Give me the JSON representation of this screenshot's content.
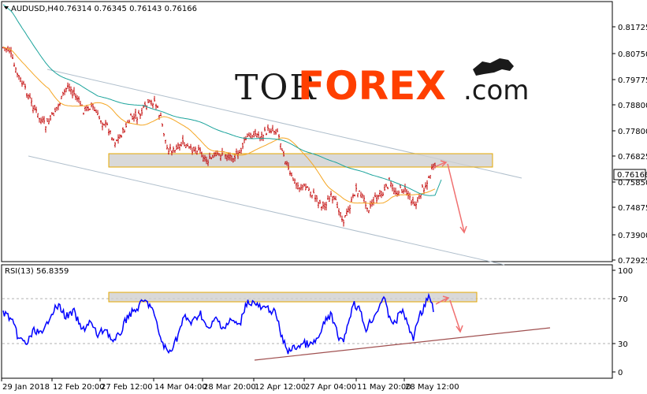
{
  "main_chart": {
    "header_symbol": "AUDUSD,H4",
    "header_ohlc": "0.76314 0.76345 0.76143 0.76166",
    "price_labels": [
      "0.81725",
      "0.80750",
      "0.79775",
      "0.78800",
      "0.77800",
      "0.76825",
      "0.75850",
      "0.74875",
      "0.73900",
      "0.72925"
    ],
    "current_price": "0.76166",
    "bars_color": "#c00000",
    "ma_fast_color": "#f5a623",
    "ma_slow_color": "#1aa39b"
  },
  "logo": {
    "part1": "TOR",
    "part2": "FOREX",
    "part3": ".com",
    "accent": "#ff3f00"
  },
  "rsi": {
    "title": "RSI(13) 56.8359",
    "levels": [
      "100",
      "70",
      "30",
      "0"
    ],
    "color": "#0000ff"
  },
  "time_axis": [
    "29 Jan 2018",
    "12 Feb 20:00",
    "27 Feb 12:00",
    "14 Mar 04:00",
    "28 Mar 20:00",
    "12 Apr 12:00",
    "27 Apr 04:00",
    "11 May 20:00",
    "28 May 12:00"
  ]
}
